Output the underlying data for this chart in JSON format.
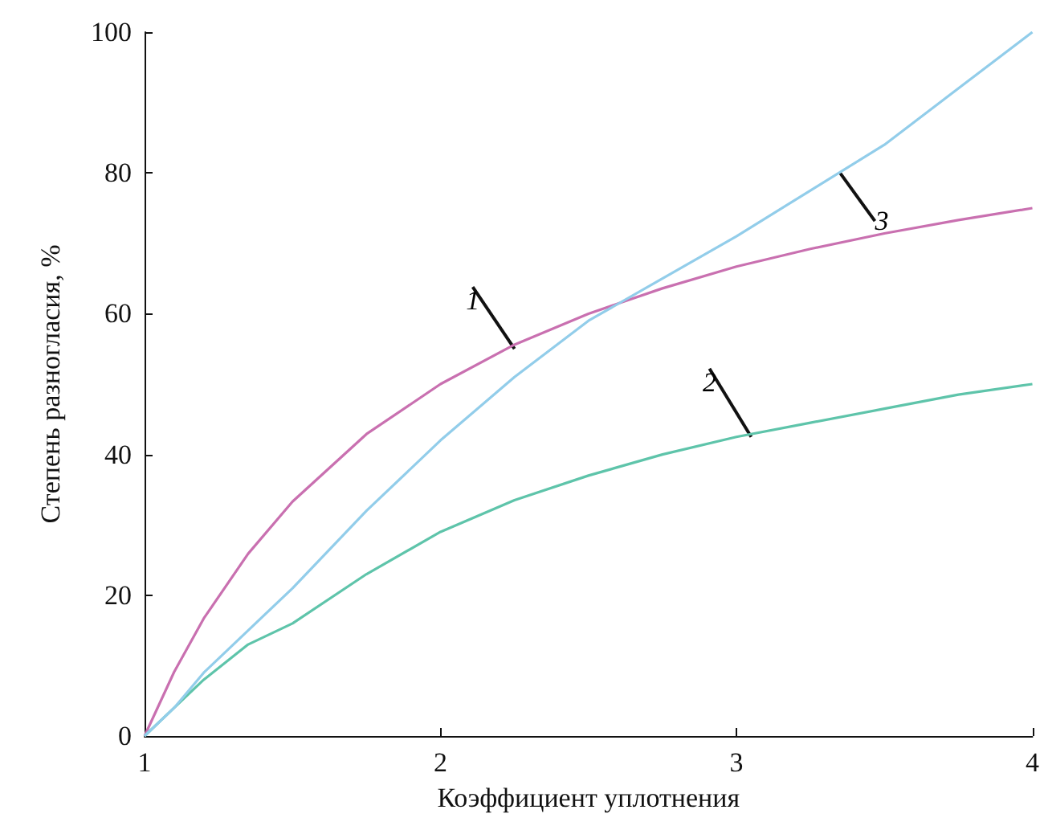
{
  "chart_data": {
    "type": "line",
    "xlabel": "Коэффициент уплотнения",
    "ylabel": "Степень разногласия, %",
    "x": [
      1,
      1.1,
      1.2,
      1.35,
      1.5,
      1.75,
      2,
      2.25,
      2.5,
      2.75,
      3,
      3.25,
      3.5,
      3.75,
      4
    ],
    "series": [
      {
        "color": "#c970b0",
        "values": [
          0,
          9.1,
          16.7,
          25.9,
          33.3,
          42.9,
          50,
          55.6,
          60,
          63.6,
          66.7,
          69.2,
          71.4,
          73.3,
          75
        ]
      },
      {
        "color": "#5ec4aa",
        "values": [
          0,
          4,
          8,
          13,
          16,
          23,
          29,
          33.5,
          37,
          40,
          42.5,
          44.5,
          46.5,
          48.5,
          50
        ]
      },
      {
        "color": "#92cdea",
        "values": [
          0,
          4,
          9,
          15,
          21,
          32,
          42,
          51,
          59,
          65,
          71,
          77.5,
          84,
          92,
          100
        ]
      }
    ],
    "annotations": [
      {
        "text": "1",
        "x": 2.25,
        "y": 55
      },
      {
        "text": "2",
        "x": 3.05,
        "y": 42.5
      },
      {
        "text": "3",
        "x": 3.35,
        "y": 80
      }
    ],
    "xlim": [
      1,
      4
    ],
    "xticks": [
      1,
      2,
      3,
      4
    ],
    "ylim": [
      0,
      100
    ],
    "yticks": [
      0,
      20,
      40,
      60,
      80,
      100
    ],
    "grid": false,
    "marker": "none",
    "line_style": "solid"
  }
}
